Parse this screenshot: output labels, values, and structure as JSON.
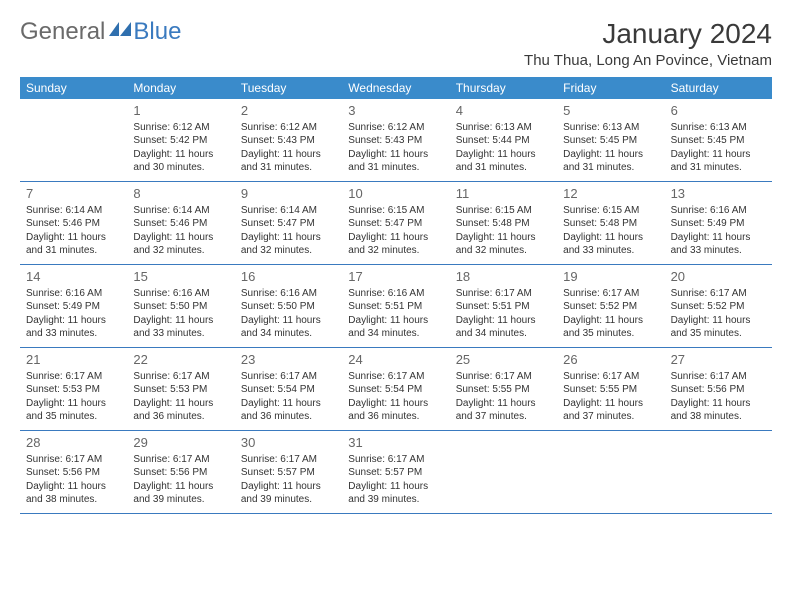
{
  "logo": {
    "general": "General",
    "blue": "Blue"
  },
  "title": "January 2024",
  "location": "Thu Thua, Long An Povince, Vietnam",
  "weekdays": [
    "Sunday",
    "Monday",
    "Tuesday",
    "Wednesday",
    "Thursday",
    "Friday",
    "Saturday"
  ],
  "colors": {
    "header_bar": "#3a8bcb",
    "border": "#3a7abf",
    "logo_gray": "#6a6a6a",
    "logo_blue": "#3a7abf",
    "text": "#333333",
    "daynum": "#666666",
    "background": "#ffffff"
  },
  "layout": {
    "columns": 7,
    "rows": 5,
    "startBlanks": 1,
    "endBlanks": 3
  },
  "days": [
    {
      "n": "1",
      "sunrise": "Sunrise: 6:12 AM",
      "sunset": "Sunset: 5:42 PM",
      "d1": "Daylight: 11 hours",
      "d2": "and 30 minutes."
    },
    {
      "n": "2",
      "sunrise": "Sunrise: 6:12 AM",
      "sunset": "Sunset: 5:43 PM",
      "d1": "Daylight: 11 hours",
      "d2": "and 31 minutes."
    },
    {
      "n": "3",
      "sunrise": "Sunrise: 6:12 AM",
      "sunset": "Sunset: 5:43 PM",
      "d1": "Daylight: 11 hours",
      "d2": "and 31 minutes."
    },
    {
      "n": "4",
      "sunrise": "Sunrise: 6:13 AM",
      "sunset": "Sunset: 5:44 PM",
      "d1": "Daylight: 11 hours",
      "d2": "and 31 minutes."
    },
    {
      "n": "5",
      "sunrise": "Sunrise: 6:13 AM",
      "sunset": "Sunset: 5:45 PM",
      "d1": "Daylight: 11 hours",
      "d2": "and 31 minutes."
    },
    {
      "n": "6",
      "sunrise": "Sunrise: 6:13 AM",
      "sunset": "Sunset: 5:45 PM",
      "d1": "Daylight: 11 hours",
      "d2": "and 31 minutes."
    },
    {
      "n": "7",
      "sunrise": "Sunrise: 6:14 AM",
      "sunset": "Sunset: 5:46 PM",
      "d1": "Daylight: 11 hours",
      "d2": "and 31 minutes."
    },
    {
      "n": "8",
      "sunrise": "Sunrise: 6:14 AM",
      "sunset": "Sunset: 5:46 PM",
      "d1": "Daylight: 11 hours",
      "d2": "and 32 minutes."
    },
    {
      "n": "9",
      "sunrise": "Sunrise: 6:14 AM",
      "sunset": "Sunset: 5:47 PM",
      "d1": "Daylight: 11 hours",
      "d2": "and 32 minutes."
    },
    {
      "n": "10",
      "sunrise": "Sunrise: 6:15 AM",
      "sunset": "Sunset: 5:47 PM",
      "d1": "Daylight: 11 hours",
      "d2": "and 32 minutes."
    },
    {
      "n": "11",
      "sunrise": "Sunrise: 6:15 AM",
      "sunset": "Sunset: 5:48 PM",
      "d1": "Daylight: 11 hours",
      "d2": "and 32 minutes."
    },
    {
      "n": "12",
      "sunrise": "Sunrise: 6:15 AM",
      "sunset": "Sunset: 5:48 PM",
      "d1": "Daylight: 11 hours",
      "d2": "and 33 minutes."
    },
    {
      "n": "13",
      "sunrise": "Sunrise: 6:16 AM",
      "sunset": "Sunset: 5:49 PM",
      "d1": "Daylight: 11 hours",
      "d2": "and 33 minutes."
    },
    {
      "n": "14",
      "sunrise": "Sunrise: 6:16 AM",
      "sunset": "Sunset: 5:49 PM",
      "d1": "Daylight: 11 hours",
      "d2": "and 33 minutes."
    },
    {
      "n": "15",
      "sunrise": "Sunrise: 6:16 AM",
      "sunset": "Sunset: 5:50 PM",
      "d1": "Daylight: 11 hours",
      "d2": "and 33 minutes."
    },
    {
      "n": "16",
      "sunrise": "Sunrise: 6:16 AM",
      "sunset": "Sunset: 5:50 PM",
      "d1": "Daylight: 11 hours",
      "d2": "and 34 minutes."
    },
    {
      "n": "17",
      "sunrise": "Sunrise: 6:16 AM",
      "sunset": "Sunset: 5:51 PM",
      "d1": "Daylight: 11 hours",
      "d2": "and 34 minutes."
    },
    {
      "n": "18",
      "sunrise": "Sunrise: 6:17 AM",
      "sunset": "Sunset: 5:51 PM",
      "d1": "Daylight: 11 hours",
      "d2": "and 34 minutes."
    },
    {
      "n": "19",
      "sunrise": "Sunrise: 6:17 AM",
      "sunset": "Sunset: 5:52 PM",
      "d1": "Daylight: 11 hours",
      "d2": "and 35 minutes."
    },
    {
      "n": "20",
      "sunrise": "Sunrise: 6:17 AM",
      "sunset": "Sunset: 5:52 PM",
      "d1": "Daylight: 11 hours",
      "d2": "and 35 minutes."
    },
    {
      "n": "21",
      "sunrise": "Sunrise: 6:17 AM",
      "sunset": "Sunset: 5:53 PM",
      "d1": "Daylight: 11 hours",
      "d2": "and 35 minutes."
    },
    {
      "n": "22",
      "sunrise": "Sunrise: 6:17 AM",
      "sunset": "Sunset: 5:53 PM",
      "d1": "Daylight: 11 hours",
      "d2": "and 36 minutes."
    },
    {
      "n": "23",
      "sunrise": "Sunrise: 6:17 AM",
      "sunset": "Sunset: 5:54 PM",
      "d1": "Daylight: 11 hours",
      "d2": "and 36 minutes."
    },
    {
      "n": "24",
      "sunrise": "Sunrise: 6:17 AM",
      "sunset": "Sunset: 5:54 PM",
      "d1": "Daylight: 11 hours",
      "d2": "and 36 minutes."
    },
    {
      "n": "25",
      "sunrise": "Sunrise: 6:17 AM",
      "sunset": "Sunset: 5:55 PM",
      "d1": "Daylight: 11 hours",
      "d2": "and 37 minutes."
    },
    {
      "n": "26",
      "sunrise": "Sunrise: 6:17 AM",
      "sunset": "Sunset: 5:55 PM",
      "d1": "Daylight: 11 hours",
      "d2": "and 37 minutes."
    },
    {
      "n": "27",
      "sunrise": "Sunrise: 6:17 AM",
      "sunset": "Sunset: 5:56 PM",
      "d1": "Daylight: 11 hours",
      "d2": "and 38 minutes."
    },
    {
      "n": "28",
      "sunrise": "Sunrise: 6:17 AM",
      "sunset": "Sunset: 5:56 PM",
      "d1": "Daylight: 11 hours",
      "d2": "and 38 minutes."
    },
    {
      "n": "29",
      "sunrise": "Sunrise: 6:17 AM",
      "sunset": "Sunset: 5:56 PM",
      "d1": "Daylight: 11 hours",
      "d2": "and 39 minutes."
    },
    {
      "n": "30",
      "sunrise": "Sunrise: 6:17 AM",
      "sunset": "Sunset: 5:57 PM",
      "d1": "Daylight: 11 hours",
      "d2": "and 39 minutes."
    },
    {
      "n": "31",
      "sunrise": "Sunrise: 6:17 AM",
      "sunset": "Sunset: 5:57 PM",
      "d1": "Daylight: 11 hours",
      "d2": "and 39 minutes."
    }
  ]
}
